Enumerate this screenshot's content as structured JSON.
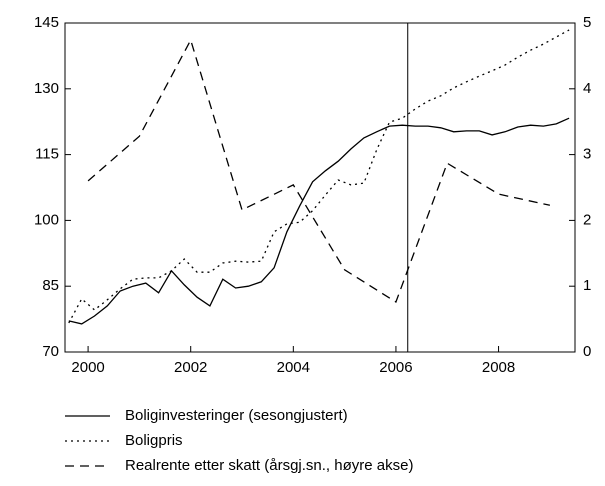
{
  "chart_data": {
    "type": "line",
    "xlim": [
      1999.55,
      2009.49
    ],
    "xticks": [
      2000,
      2002,
      2004,
      2006,
      2008
    ],
    "ylim": [
      70,
      145
    ],
    "yticks": [
      70,
      85,
      100,
      115,
      130,
      145
    ],
    "y2lim": [
      0,
      5
    ],
    "y2ticks": [
      0,
      1,
      2,
      3,
      4,
      5
    ],
    "vline": 2006.23,
    "series": [
      {
        "name": "Boliginvesteringer (sesongjustert)",
        "color": "#000000",
        "style": "solid",
        "x": [
          1999.625,
          1999.875,
          2000.125,
          2000.375,
          2000.625,
          2000.875,
          2001.125,
          2001.375,
          2001.625,
          2001.875,
          2002.125,
          2002.375,
          2002.625,
          2002.875,
          2003.125,
          2003.375,
          2003.625,
          2003.875,
          2004.125,
          2004.375,
          2004.625,
          2004.875,
          2005.125,
          2005.375,
          2005.625,
          2005.875,
          2006.125,
          2006.375,
          2006.625,
          2006.875,
          2007.125,
          2007.375,
          2007.625,
          2007.875,
          2008.125,
          2008.375,
          2008.625,
          2008.875,
          2009.125,
          2009.375
        ],
        "values": [
          77.1,
          76.4,
          78.2,
          80.5,
          83.9,
          85.0,
          85.7,
          83.5,
          88.5,
          85.3,
          82.5,
          80.5,
          86.6,
          84.6,
          85.0,
          86.0,
          89.2,
          97.4,
          103.3,
          108.8,
          111.3,
          113.5,
          116.3,
          118.8,
          120.2,
          121.5,
          121.7,
          121.5,
          121.5,
          121.1,
          120.2,
          120.4,
          120.4,
          119.5,
          120.2,
          121.3,
          121.7,
          121.5,
          122.0,
          123.3
        ]
      },
      {
        "name": "Boligpris",
        "color": "#000000",
        "style": "dotted",
        "x": [
          1999.625,
          1999.875,
          2000.125,
          2000.375,
          2000.625,
          2000.875,
          2001.125,
          2001.375,
          2001.625,
          2001.875,
          2002.125,
          2002.375,
          2002.625,
          2002.875,
          2003.125,
          2003.375,
          2003.625,
          2003.875,
          2004.125,
          2004.375,
          2004.625,
          2004.875,
          2005.125,
          2005.375,
          2005.625,
          2005.875,
          2006.125,
          2006.375,
          2006.625,
          2006.875,
          2007.125,
          2007.375,
          2007.625,
          2007.875,
          2008.125,
          2008.375,
          2008.625,
          2008.875,
          2009.125,
          2009.375
        ],
        "values": [
          76.6,
          82.1,
          79.6,
          81.9,
          84.4,
          86.6,
          86.9,
          86.9,
          88.5,
          91.2,
          88.2,
          88.2,
          90.3,
          90.7,
          90.5,
          90.7,
          97.4,
          99.2,
          99.6,
          102.2,
          105.8,
          109.2,
          108.1,
          108.5,
          116.1,
          122.4,
          123.3,
          125.4,
          127.2,
          128.4,
          130.2,
          131.6,
          132.9,
          134.1,
          135.4,
          137.2,
          138.8,
          140.2,
          141.8,
          143.4
        ]
      },
      {
        "name": "Realrente etter skatt (årsgj.sn., høyre akse)",
        "color": "#000000",
        "style": "dashed",
        "axis": "y2",
        "x": [
          2000,
          2001,
          2002,
          2003,
          2004,
          2005,
          2006,
          2007,
          2008,
          2009
        ],
        "values": [
          2.6,
          3.28,
          4.74,
          2.16,
          2.54,
          1.25,
          0.76,
          2.87,
          2.4,
          2.23
        ]
      }
    ]
  }
}
